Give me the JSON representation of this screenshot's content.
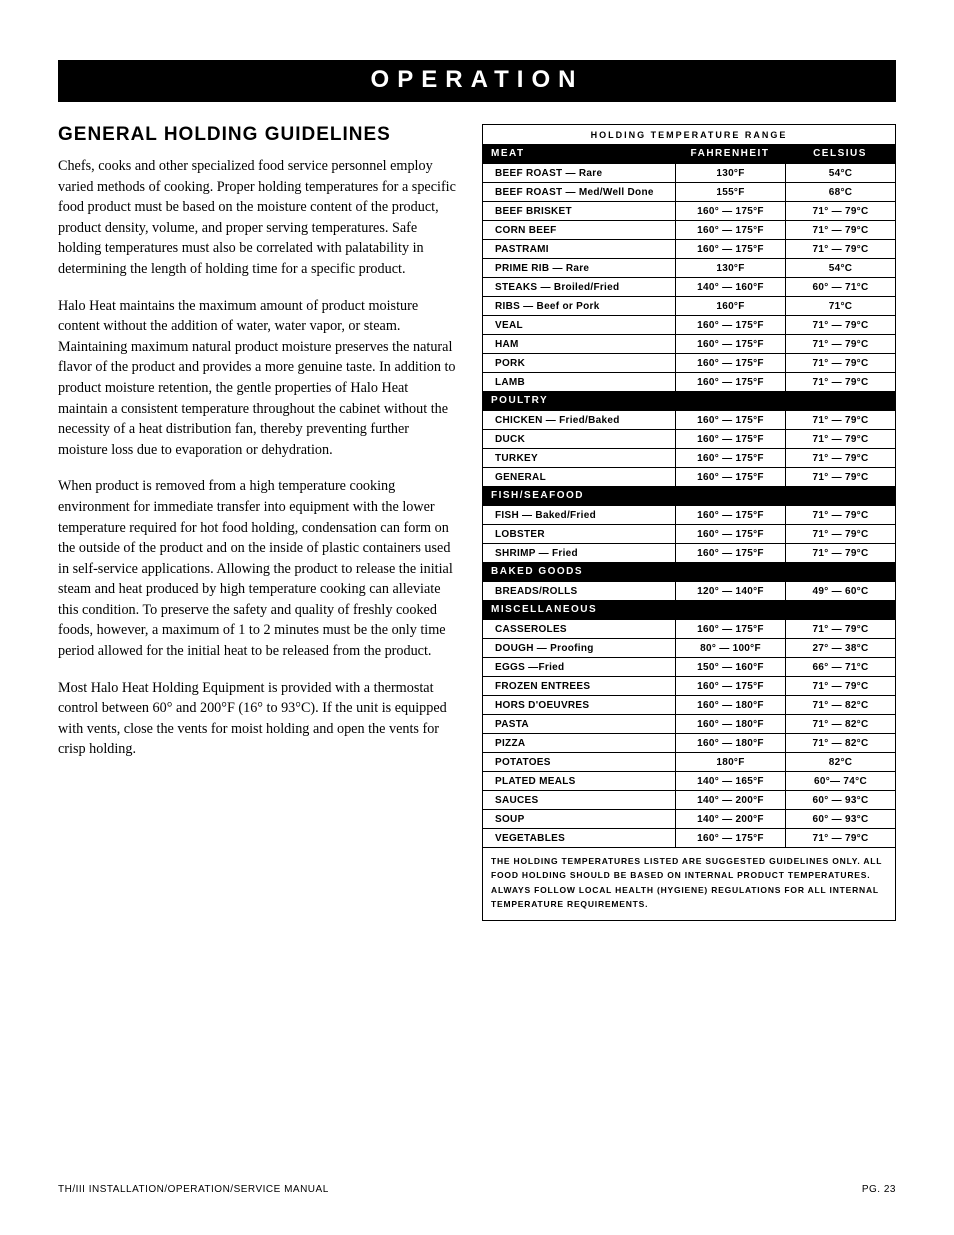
{
  "banner": "OPERATION",
  "heading": "GENERAL HOLDING GUIDELINES",
  "paragraphs": [
    "Chefs, cooks and other specialized food service personnel employ varied methods of cooking.  Proper holding temperatures for a specific food product must be based on the moisture content of the product, product density, volume, and proper serving temperatures.  Safe holding temperatures must also be correlated with palatability in determining the length of holding time for a specific product.",
    "Halo Heat maintains the maximum amount of product moisture content without the addition of water, water vapor, or steam.  Maintaining maximum natural product moisture preserves the natural flavor of the product and provides a more genuine taste.  In addition to product moisture retention, the gentle properties of Halo Heat maintain a consistent temperature throughout the cabinet without the necessity of a heat distribution fan, thereby preventing further moisture loss due to evaporation or dehydration.",
    "When product is removed from a high temperature cooking environment for immediate transfer into equipment with the lower temperature required for hot food holding, condensation can form on the outside of the product and on the inside of plastic containers used in self-service applications.  Allowing the product to release the initial steam and heat produced by high temperature cooking can alleviate this condition.  To preserve the safety and quality of freshly cooked foods, however, a maximum of 1 to 2 minutes must be the only time period allowed for the initial heat to be released from the product.",
    "Most Halo Heat Holding Equipment is provided with a thermostat control between 60° and 200°F (16° to 93°C).  If the unit is equipped with vents, close the vents for moist holding and open the vents for crisp holding."
  ],
  "table": {
    "title": "HOLDING TEMPERATURE RANGE",
    "headers": {
      "c1": "MEAT",
      "c2": "FAHRENHEIT",
      "c3": "CELSIUS"
    },
    "sections": [
      {
        "category": null,
        "rows": [
          {
            "name": "BEEF ROAST — Rare",
            "f": "130°F",
            "c": "54°C"
          },
          {
            "name": "BEEF ROAST — Med/Well Done",
            "f": "155°F",
            "c": "68°C"
          },
          {
            "name": "BEEF BRISKET",
            "f": "160° — 175°F",
            "c": "71° — 79°C"
          },
          {
            "name": "CORN BEEF",
            "f": "160° — 175°F",
            "c": "71° — 79°C"
          },
          {
            "name": "PASTRAMI",
            "f": "160° — 175°F",
            "c": "71° — 79°C"
          },
          {
            "name": "PRIME RIB — Rare",
            "f": "130°F",
            "c": "54°C"
          },
          {
            "name": "STEAKS — Broiled/Fried",
            "f": "140° — 160°F",
            "c": "60° — 71°C"
          },
          {
            "name": "RIBS — Beef or Pork",
            "f": "160°F",
            "c": "71°C"
          },
          {
            "name": "VEAL",
            "f": "160° — 175°F",
            "c": "71° — 79°C"
          },
          {
            "name": "HAM",
            "f": "160° — 175°F",
            "c": "71° — 79°C"
          },
          {
            "name": "PORK",
            "f": "160° — 175°F",
            "c": "71° — 79°C"
          },
          {
            "name": "LAMB",
            "f": "160° — 175°F",
            "c": "71° — 79°C"
          }
        ]
      },
      {
        "category": "POULTRY",
        "rows": [
          {
            "name": "CHICKEN — Fried/Baked",
            "f": "160° — 175°F",
            "c": "71° — 79°C"
          },
          {
            "name": "DUCK",
            "f": "160° — 175°F",
            "c": "71° — 79°C"
          },
          {
            "name": "TURKEY",
            "f": "160° — 175°F",
            "c": "71° — 79°C"
          },
          {
            "name": "GENERAL",
            "f": "160° — 175°F",
            "c": "71° — 79°C"
          }
        ]
      },
      {
        "category": "FISH/SEAFOOD",
        "rows": [
          {
            "name": "FISH — Baked/Fried",
            "f": "160° — 175°F",
            "c": "71° — 79°C"
          },
          {
            "name": "LOBSTER",
            "f": "160° — 175°F",
            "c": "71° — 79°C"
          },
          {
            "name": "SHRIMP — Fried",
            "f": "160° — 175°F",
            "c": "71° — 79°C"
          }
        ]
      },
      {
        "category": "BAKED GOODS",
        "rows": [
          {
            "name": "BREADS/ROLLS",
            "f": "120° — 140°F",
            "c": "49° — 60°C"
          }
        ]
      },
      {
        "category": "MISCELLANEOUS",
        "rows": [
          {
            "name": "CASSEROLES",
            "f": "160° — 175°F",
            "c": "71° — 79°C"
          },
          {
            "name": "DOUGH — Proofing",
            "f": "80° — 100°F",
            "c": "27° — 38°C"
          },
          {
            "name": "EGGS —Fried",
            "f": "150° — 160°F",
            "c": "66° — 71°C"
          },
          {
            "name": "FROZEN ENTREES",
            "f": "160° — 175°F",
            "c": "71° — 79°C"
          },
          {
            "name": "HORS D'OEUVRES",
            "f": "160° — 180°F",
            "c": "71° — 82°C"
          },
          {
            "name": "PASTA",
            "f": "160° — 180°F",
            "c": "71° — 82°C"
          },
          {
            "name": "PIZZA",
            "f": "160° — 180°F",
            "c": "71° — 82°C"
          },
          {
            "name": "POTATOES",
            "f": "180°F",
            "c": "82°C"
          },
          {
            "name": "PLATED MEALS",
            "f": "140° — 165°F",
            "c": "60°— 74°C"
          },
          {
            "name": "SAUCES",
            "f": "140° — 200°F",
            "c": "60° — 93°C"
          },
          {
            "name": "SOUP",
            "f": "140° — 200°F",
            "c": "60° — 93°C"
          },
          {
            "name": "VEGETABLES",
            "f": "160° — 175°F",
            "c": "71° — 79°C"
          }
        ]
      }
    ],
    "footer": "THE HOLDING TEMPERATURES LISTED ARE SUGGESTED GUIDELINES ONLY.  ALL FOOD HOLDING SHOULD BE BASED ON INTERNAL PRODUCT TEMPERATURES.  ALWAYS FOLLOW LOCAL HEALTH (HYGIENE) REGULATIONS FOR ALL INTERNAL TEMPERATURE REQUIREMENTS."
  },
  "footer": {
    "left_prefix": "TH/III ",
    "left_rest": "INSTALLATION/OPERATION/SERVICE MANUAL",
    "right_prefix": "PG. ",
    "right_num": "23"
  }
}
